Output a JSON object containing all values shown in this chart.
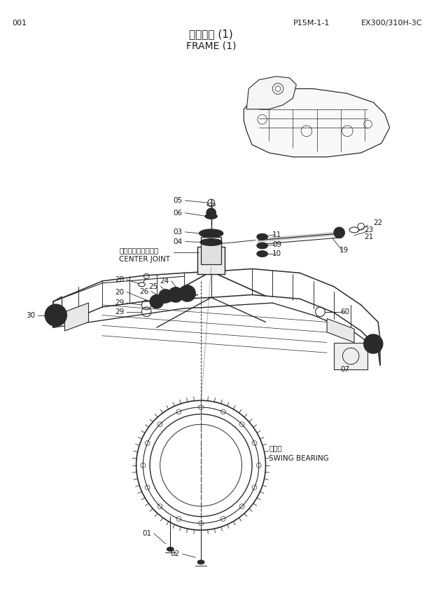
{
  "title_jp": "フレーム (1)",
  "title_en": "FRAME (1)",
  "page_num": "001",
  "part_num": "P15M-1-1",
  "model": "EX300/310H-3C",
  "bg_color": "#ffffff",
  "line_color": "#2a2a2a",
  "text_color": "#1a1a1a",
  "fig_w": 6.2,
  "fig_h": 8.73,
  "dpi": 100
}
